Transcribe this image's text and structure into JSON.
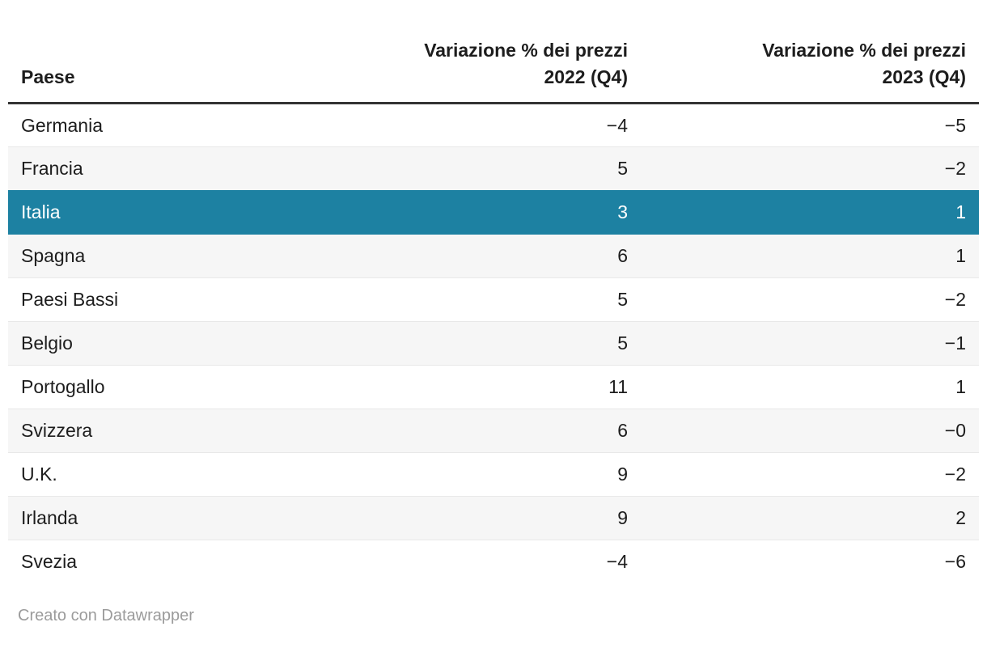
{
  "table": {
    "columns": [
      {
        "label": "Paese"
      },
      {
        "label": "Variazione % dei prezzi\n2022 (Q4)"
      },
      {
        "label": "Variazione % dei prezzi\n2023 (Q4)"
      }
    ],
    "rows": [
      {
        "country": "Germania",
        "v2022": "−4",
        "v2023": "−5"
      },
      {
        "country": "Francia",
        "v2022": "5",
        "v2023": "−2"
      },
      {
        "country": "Italia",
        "v2022": "3",
        "v2023": "1"
      },
      {
        "country": "Spagna",
        "v2022": "6",
        "v2023": "1"
      },
      {
        "country": "Paesi Bassi",
        "v2022": "5",
        "v2023": "−2"
      },
      {
        "country": "Belgio",
        "v2022": "5",
        "v2023": "−1"
      },
      {
        "country": "Portogallo",
        "v2022": "11",
        "v2023": "1"
      },
      {
        "country": "Svizzera",
        "v2022": "6",
        "v2023": "−0"
      },
      {
        "country": "U.K.",
        "v2022": "9",
        "v2023": "−2"
      },
      {
        "country": "Irlanda",
        "v2022": "9",
        "v2023": "2"
      },
      {
        "country": "Svezia",
        "v2022": "−4",
        "v2023": "−6"
      }
    ],
    "highlighted_row": "Italia"
  },
  "footer": {
    "attribution": "Creato con Datawrapper"
  },
  "colors": {
    "highlight_row_background": "#1d81a2",
    "highlight_row_text": "#ffffff",
    "stripe_row_background": "#f6f6f6",
    "header_rule": "#333333",
    "row_divider": "#e8e8e8",
    "body_text": "#1d1d1d",
    "footer_text": "#9b9b9b"
  },
  "chart_data": {
    "type": "table",
    "title": "",
    "categories": [
      "Germania",
      "Francia",
      "Italia",
      "Spagna",
      "Paesi Bassi",
      "Belgio",
      "Portogallo",
      "Svizzera",
      "U.K.",
      "Irlanda",
      "Svezia"
    ],
    "series": [
      {
        "name": "Variazione % dei prezzi 2022 (Q4)",
        "values": [
          -4,
          5,
          3,
          6,
          5,
          5,
          11,
          6,
          9,
          9,
          -4
        ]
      },
      {
        "name": "Variazione % dei prezzi 2023 (Q4)",
        "values": [
          -5,
          -2,
          1,
          1,
          -2,
          -1,
          1,
          0,
          -2,
          2,
          -6
        ]
      }
    ],
    "highlighted_category": "Italia",
    "attribution": "Creato con Datawrapper"
  }
}
